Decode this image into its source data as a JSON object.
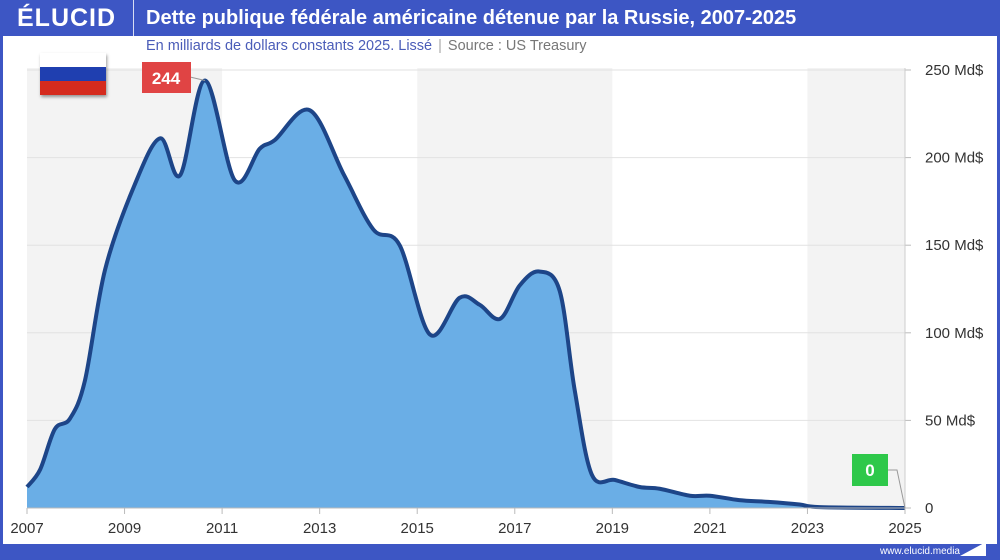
{
  "header": {
    "logo": "ÉLUCID",
    "title": "Dette publique fédérale américaine détenue par la Russie, 2007-2025"
  },
  "subtitle": {
    "text": "En milliards de dollars constants 2025. Lissé",
    "separator": "|",
    "source": "Source : US Treasury"
  },
  "footer": {
    "url": "www.elucid.media"
  },
  "flag": {
    "country": "Russie",
    "colors": [
      "#ffffff",
      "#1f3fb0",
      "#d52b1e"
    ]
  },
  "chart_data": {
    "type": "area",
    "title": "Dette publique fédérale américaine détenue par la Russie, 2007-2025",
    "xlabel": "",
    "ylabel": "",
    "xlim": [
      2007,
      2025
    ],
    "ylim": [
      0,
      250
    ],
    "x_ticks": [
      "2007",
      "2009",
      "2011",
      "2013",
      "2015",
      "2017",
      "2019",
      "2021",
      "2023",
      "2025"
    ],
    "y_ticks": [
      "0",
      "50 Md$",
      "100 Md$",
      "150 Md$",
      "200 Md$",
      "250 Md$"
    ],
    "grid": true,
    "fill_color": "#6aaee6",
    "line_color": "#1d4588",
    "points": [
      [
        2007,
        12
      ],
      [
        2007.27,
        22
      ],
      [
        2007.57,
        45
      ],
      [
        2007.88,
        51
      ],
      [
        2008.19,
        73
      ],
      [
        2008.6,
        136
      ],
      [
        2009.2,
        184
      ],
      [
        2009.73,
        211
      ],
      [
        2010.14,
        190
      ],
      [
        2010.65,
        244
      ],
      [
        2011.26,
        187
      ],
      [
        2011.77,
        205
      ],
      [
        2012.08,
        210
      ],
      [
        2012.8,
        227
      ],
      [
        2013.5,
        190
      ],
      [
        2014.1,
        159
      ],
      [
        2014.64,
        150
      ],
      [
        2015.26,
        99
      ],
      [
        2015.87,
        120
      ],
      [
        2016.28,
        116
      ],
      [
        2016.7,
        108
      ],
      [
        2017.1,
        127
      ],
      [
        2017.5,
        135
      ],
      [
        2017.92,
        124
      ],
      [
        2018.23,
        67
      ],
      [
        2018.58,
        19
      ],
      [
        2019.05,
        16
      ],
      [
        2019.56,
        12
      ],
      [
        2019.97,
        11
      ],
      [
        2020.59,
        7
      ],
      [
        2021.0,
        7
      ],
      [
        2021.6,
        4.5
      ],
      [
        2022.2,
        3.5
      ],
      [
        2022.84,
        2
      ],
      [
        2023.25,
        0.5
      ],
      [
        2025,
        0
      ]
    ],
    "annotations": [
      {
        "label": "244",
        "x": 2010.65,
        "y": 244,
        "color": "#e04444"
      },
      {
        "label": "0",
        "x": 2025,
        "y": 0,
        "color": "#2ec84a"
      }
    ]
  }
}
